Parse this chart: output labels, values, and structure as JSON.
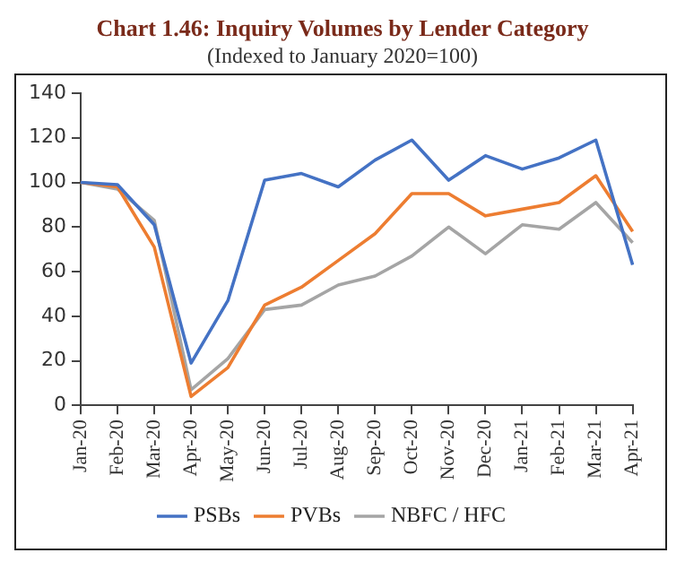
{
  "chart_data": {
    "type": "line",
    "title": "Chart 1.46: Inquiry Volumes by Lender Category",
    "subtitle": "(Indexed to January 2020=100)",
    "categories": [
      "Jan-20",
      "Feb-20",
      "Mar-20",
      "Apr-20",
      "May-20",
      "Jun-20",
      "Jul-20",
      "Aug-20",
      "Sep-20",
      "Oct-20",
      "Nov-20",
      "Dec-20",
      "Jan-21",
      "Feb-21",
      "Mar-21",
      "Apr-21"
    ],
    "series": [
      {
        "name": "PSBs",
        "color": "#4472c4",
        "values": [
          100,
          99,
          81,
          19,
          47,
          101,
          104,
          98,
          110,
          119,
          101,
          112,
          106,
          111,
          119,
          63
        ]
      },
      {
        "name": "PVBs",
        "color": "#ed7d31",
        "values": [
          100,
          98,
          71,
          4,
          17,
          45,
          53,
          65,
          77,
          95,
          95,
          85,
          88,
          91,
          103,
          78
        ]
      },
      {
        "name": "NBFC / HFC",
        "color": "#a5a5a5",
        "values": [
          100,
          97,
          83,
          7,
          21,
          43,
          45,
          54,
          58,
          67,
          80,
          68,
          81,
          79,
          91,
          73
        ]
      }
    ],
    "ylim": [
      0,
      140
    ],
    "yticks": [
      0,
      20,
      40,
      60,
      80,
      100,
      120,
      140
    ],
    "grid": false,
    "legend": "bottom",
    "marker": "none",
    "line_style": "solid"
  }
}
